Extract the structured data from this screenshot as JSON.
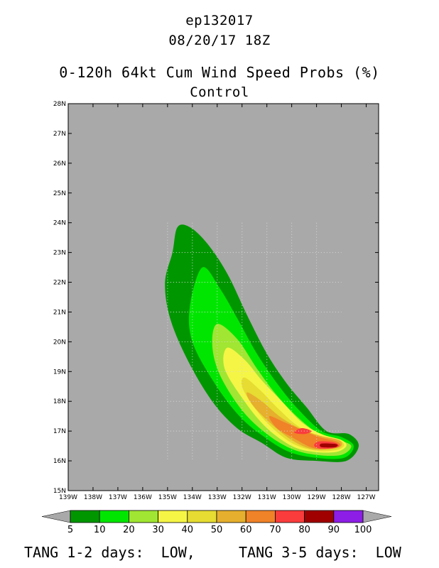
{
  "header": {
    "storm_id": "ep132017",
    "datetime": "08/20/17 18Z",
    "product": "0-120h 64kt Cum Wind Speed Probs (%)",
    "member": "Control"
  },
  "footer": {
    "tang_1_2": "TANG 1-2 days:  LOW,",
    "tang_3_5": "TANG 3-5 days:  LOW"
  },
  "colors": {
    "background": "#a9a9a9",
    "levels": [
      "#009600",
      "#00e600",
      "#a0e632",
      "#f5f546",
      "#e6dc32",
      "#e6af2d",
      "#f08228",
      "#fa3c3c",
      "#a00000",
      "#8c1ee6"
    ]
  },
  "chart_data": {
    "type": "heatmap",
    "x_unit": "deg longitude (negative = W)",
    "y_unit": "deg latitude (N)",
    "xlim": [
      -139,
      -126.5
    ],
    "ylim": [
      15,
      28
    ],
    "x_ticks": [
      "139W",
      "138W",
      "137W",
      "136W",
      "135W",
      "134W",
      "133W",
      "132W",
      "131W",
      "130W",
      "129W",
      "128W",
      "127W"
    ],
    "y_ticks": [
      "15N",
      "16N",
      "17N",
      "18N",
      "19N",
      "20N",
      "21N",
      "22N",
      "23N",
      "24N",
      "25N",
      "26N",
      "27N",
      "28N"
    ],
    "grid": "dotted, inside probability area",
    "colorbar": {
      "bounds": [
        5,
        10,
        20,
        30,
        40,
        50,
        60,
        70,
        80,
        90,
        100
      ],
      "labels": [
        "5",
        "10",
        "20",
        "30",
        "40",
        "50",
        "60",
        "70",
        "80",
        "90",
        "100"
      ]
    },
    "contours": [
      {
        "level": 5,
        "points": [
          [
            -134.6,
            23.85
          ],
          [
            -134.1,
            23.85
          ],
          [
            -133.4,
            23.3
          ],
          [
            -132.6,
            22.3
          ],
          [
            -131.8,
            20.9
          ],
          [
            -131.0,
            19.6
          ],
          [
            -130.2,
            18.6
          ],
          [
            -129.4,
            17.8
          ],
          [
            -128.6,
            17.0
          ],
          [
            -127.7,
            16.9
          ],
          [
            -127.3,
            16.5
          ],
          [
            -127.8,
            16.0
          ],
          [
            -129.0,
            16.0
          ],
          [
            -130.2,
            16.1
          ],
          [
            -131.2,
            16.6
          ],
          [
            -132.2,
            17.1
          ],
          [
            -133.2,
            18.0
          ],
          [
            -134.2,
            19.4
          ],
          [
            -134.9,
            20.8
          ],
          [
            -135.1,
            22.0
          ],
          [
            -134.8,
            23.0
          ]
        ]
      },
      {
        "level": 10,
        "points": [
          [
            -133.6,
            22.5
          ],
          [
            -132.9,
            21.8
          ],
          [
            -132.2,
            20.8
          ],
          [
            -131.4,
            19.6
          ],
          [
            -130.5,
            18.5
          ],
          [
            -129.7,
            17.7
          ],
          [
            -128.8,
            17.0
          ],
          [
            -128.0,
            16.8
          ],
          [
            -127.5,
            16.5
          ],
          [
            -127.9,
            16.1
          ],
          [
            -129.0,
            16.1
          ],
          [
            -130.1,
            16.3
          ],
          [
            -131.1,
            16.8
          ],
          [
            -132.1,
            17.5
          ],
          [
            -133.1,
            18.6
          ],
          [
            -134.0,
            20.0
          ],
          [
            -134.1,
            21.2
          ]
        ]
      },
      {
        "level": 20,
        "points": [
          [
            -133.0,
            20.6
          ],
          [
            -132.2,
            20.1
          ],
          [
            -131.4,
            19.1
          ],
          [
            -130.6,
            18.2
          ],
          [
            -129.8,
            17.5
          ],
          [
            -128.9,
            16.9
          ],
          [
            -128.1,
            16.7
          ],
          [
            -127.6,
            16.5
          ],
          [
            -128.0,
            16.2
          ],
          [
            -129.0,
            16.2
          ],
          [
            -130.0,
            16.4
          ],
          [
            -131.0,
            16.9
          ],
          [
            -132.0,
            17.7
          ],
          [
            -132.9,
            18.9
          ],
          [
            -133.2,
            19.9
          ]
        ]
      },
      {
        "level": 30,
        "points": [
          [
            -132.6,
            19.8
          ],
          [
            -131.9,
            19.4
          ],
          [
            -131.2,
            18.7
          ],
          [
            -130.4,
            18.0
          ],
          [
            -129.6,
            17.3
          ],
          [
            -128.8,
            16.9
          ],
          [
            -128.0,
            16.7
          ],
          [
            -127.8,
            16.5
          ],
          [
            -128.2,
            16.3
          ],
          [
            -129.1,
            16.3
          ],
          [
            -130.0,
            16.5
          ],
          [
            -131.0,
            17.1
          ],
          [
            -131.9,
            18.0
          ],
          [
            -132.7,
            19.1
          ]
        ]
      },
      {
        "level": 40,
        "points": [
          [
            -131.9,
            18.8
          ],
          [
            -131.3,
            18.4
          ],
          [
            -130.6,
            17.8
          ],
          [
            -129.8,
            17.2
          ],
          [
            -129.0,
            16.85
          ],
          [
            -128.1,
            16.7
          ],
          [
            -127.9,
            16.5
          ],
          [
            -128.3,
            16.35
          ],
          [
            -129.1,
            16.35
          ],
          [
            -130.0,
            16.6
          ],
          [
            -130.9,
            17.2
          ],
          [
            -131.6,
            17.9
          ],
          [
            -132.0,
            18.5
          ]
        ]
      },
      {
        "level": 50,
        "points": [
          [
            -131.8,
            18.3
          ],
          [
            -131.2,
            18.0
          ],
          [
            -130.5,
            17.5
          ],
          [
            -129.7,
            17.1
          ],
          [
            -128.9,
            16.85
          ],
          [
            -128.1,
            16.7
          ],
          [
            -128.0,
            16.5
          ],
          [
            -128.4,
            16.4
          ],
          [
            -129.2,
            16.4
          ],
          [
            -130.0,
            16.7
          ],
          [
            -130.9,
            17.3
          ],
          [
            -131.6,
            17.9
          ]
        ]
      },
      {
        "level": 60,
        "points": [
          [
            -130.9,
            17.5
          ],
          [
            -130.3,
            17.3
          ],
          [
            -129.6,
            17.05
          ],
          [
            -128.9,
            16.8
          ],
          [
            -128.2,
            16.65
          ],
          [
            -128.05,
            16.5
          ],
          [
            -128.5,
            16.4
          ],
          [
            -129.2,
            16.45
          ],
          [
            -130.0,
            16.8
          ],
          [
            -130.6,
            17.1
          ]
        ]
      },
      {
        "level": 70,
        "points": [
          [
            -129.6,
            17.1
          ],
          [
            -129.2,
            17.0
          ],
          [
            -129.5,
            16.9
          ],
          [
            -129.9,
            16.95
          ]
        ]
      },
      {
        "level": 70,
        "points": [
          [
            -128.9,
            16.65
          ],
          [
            -128.3,
            16.62
          ],
          [
            -128.1,
            16.5
          ],
          [
            -128.4,
            16.42
          ],
          [
            -128.9,
            16.42
          ],
          [
            -129.1,
            16.52
          ]
        ]
      },
      {
        "level": 80,
        "points": [
          [
            -128.8,
            16.58
          ],
          [
            -128.2,
            16.56
          ],
          [
            -128.25,
            16.46
          ],
          [
            -128.8,
            16.46
          ]
        ]
      }
    ]
  }
}
